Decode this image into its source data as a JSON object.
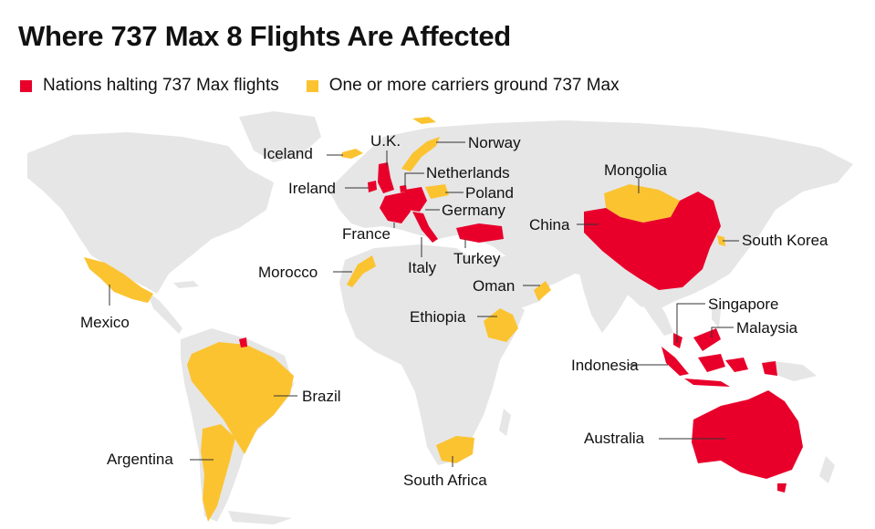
{
  "title": "Where 737 Max 8 Flights Are Affected",
  "colors": {
    "halt": "#e8002b",
    "carrier": "#fcc331",
    "land": "#e6e6e6",
    "ocean": "#ffffff"
  },
  "legend": [
    {
      "label": "Nations halting 737 Max flights",
      "color": "#e8002b"
    },
    {
      "label": "One or more carriers ground 737 Max",
      "color": "#fcc331"
    }
  ],
  "countries": {
    "iceland": "Iceland",
    "uk": "U.K.",
    "norway": "Norway",
    "ireland": "Ireland",
    "netherlands": "Netherlands",
    "poland": "Poland",
    "germany": "Germany",
    "france": "France",
    "italy": "Italy",
    "turkey": "Turkey",
    "morocco": "Morocco",
    "oman": "Oman",
    "ethiopia": "Ethiopia",
    "mongolia": "Mongolia",
    "china": "China",
    "south_korea": "South Korea",
    "singapore": "Singapore",
    "malaysia": "Malaysia",
    "indonesia": "Indonesia",
    "australia": "Australia",
    "mexico": "Mexico",
    "brazil": "Brazil",
    "argentina": "Argentina",
    "south_africa": "South Africa"
  }
}
